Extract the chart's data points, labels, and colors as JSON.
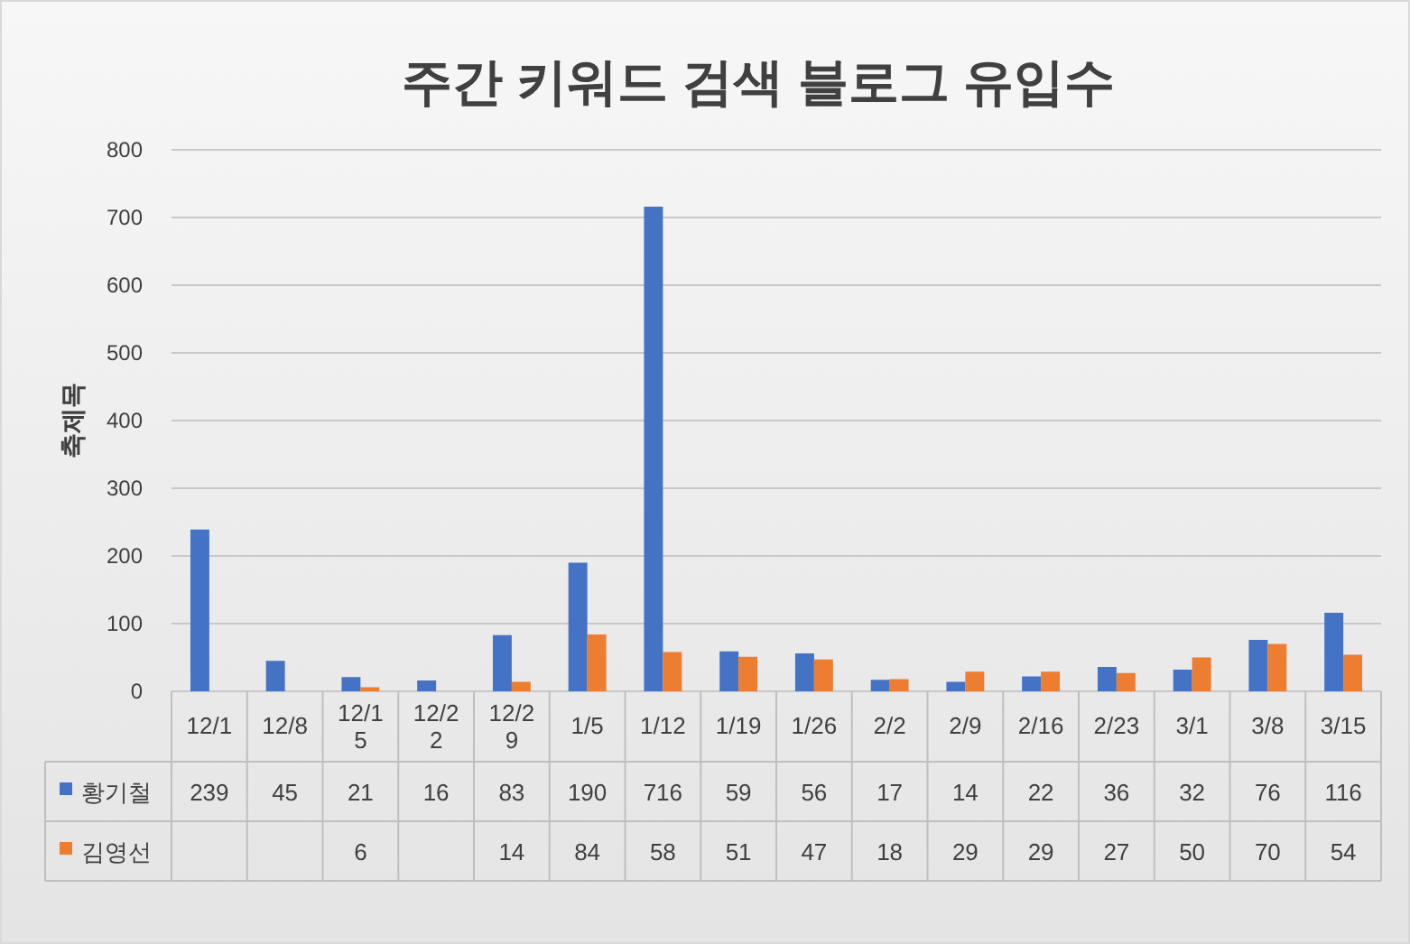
{
  "chart_data": {
    "type": "bar",
    "title": "주간 키워드 검색 블로그 유입수",
    "ylabel": "축제목",
    "categories": [
      "12/1",
      "12/8",
      "12/15",
      "12/22",
      "12/29",
      "1/5",
      "1/12",
      "1/19",
      "1/26",
      "2/2",
      "2/9",
      "2/16",
      "2/23",
      "3/1",
      "3/8",
      "3/15"
    ],
    "series": [
      {
        "name": "황기철",
        "color": "#4472c4",
        "values": [
          239,
          45,
          21,
          16,
          83,
          190,
          716,
          59,
          56,
          17,
          14,
          22,
          36,
          32,
          76,
          116
        ]
      },
      {
        "name": "김영선",
        "color": "#ed7d31",
        "values": [
          null,
          null,
          6,
          null,
          14,
          84,
          58,
          51,
          47,
          18,
          29,
          29,
          27,
          50,
          70,
          54
        ]
      }
    ],
    "ylim": [
      0,
      800
    ],
    "yticks": [
      0,
      100,
      200,
      300,
      400,
      500,
      600,
      700,
      800
    ],
    "grid": "y",
    "data_labels": true,
    "legend": "bottom"
  }
}
